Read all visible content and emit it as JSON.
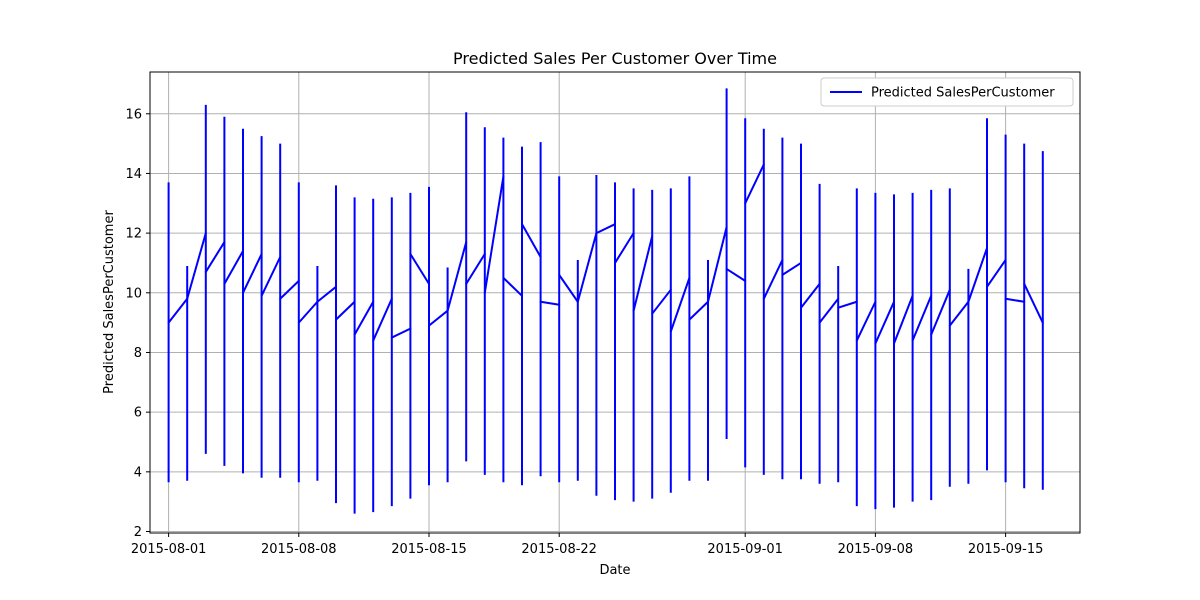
{
  "chart_data": {
    "type": "line",
    "title": "Predicted Sales Per Customer Over Time",
    "xlabel": "Date",
    "ylabel": "Predicted SalesPerCustomer",
    "x_ticks": [
      "2015-08-01",
      "2015-08-08",
      "2015-08-15",
      "2015-08-22",
      "2015-09-01",
      "2015-09-08",
      "2015-09-15"
    ],
    "y_ticks": [
      "2",
      "4",
      "6",
      "8",
      "10",
      "12",
      "14",
      "16"
    ],
    "xlim": [
      "2015-07-31",
      "2015-09-19"
    ],
    "ylim": [
      1.95,
      17.4
    ],
    "grid": true,
    "legend_position": "top-right",
    "series": [
      {
        "name": "Predicted SalesPerCustomer",
        "color": "#0000ff",
        "x": [
          "2015-08-01",
          "2015-08-02",
          "2015-08-03",
          "2015-08-04",
          "2015-08-05",
          "2015-08-06",
          "2015-08-07",
          "2015-08-08",
          "2015-08-09",
          "2015-08-10",
          "2015-08-11",
          "2015-08-12",
          "2015-08-13",
          "2015-08-14",
          "2015-08-15",
          "2015-08-16",
          "2015-08-17",
          "2015-08-18",
          "2015-08-19",
          "2015-08-20",
          "2015-08-21",
          "2015-08-22",
          "2015-08-23",
          "2015-08-24",
          "2015-08-25",
          "2015-08-26",
          "2015-08-27",
          "2015-08-28",
          "2015-08-29",
          "2015-08-30",
          "2015-08-31",
          "2015-09-01",
          "2015-09-02",
          "2015-09-03",
          "2015-09-04",
          "2015-09-05",
          "2015-09-06",
          "2015-09-07",
          "2015-09-08",
          "2015-09-09",
          "2015-09-10",
          "2015-09-11",
          "2015-09-12",
          "2015-09-13",
          "2015-09-14",
          "2015-09-15",
          "2015-09-16",
          "2015-09-17"
        ],
        "ranges": [
          [
            3.65,
            13.7
          ],
          [
            3.7,
            10.9
          ],
          [
            4.6,
            16.3
          ],
          [
            4.2,
            15.9
          ],
          [
            3.95,
            15.5
          ],
          [
            3.8,
            15.25
          ],
          [
            3.8,
            15.0
          ],
          [
            3.65,
            13.7
          ],
          [
            3.7,
            10.9
          ],
          [
            2.95,
            13.6
          ],
          [
            2.6,
            13.2
          ],
          [
            2.65,
            13.15
          ],
          [
            2.85,
            13.2
          ],
          [
            3.1,
            13.35
          ],
          [
            3.55,
            13.55
          ],
          [
            3.65,
            10.85
          ],
          [
            4.35,
            16.05
          ],
          [
            3.9,
            15.55
          ],
          [
            3.65,
            15.2
          ],
          [
            3.55,
            14.9
          ],
          [
            3.85,
            15.05
          ],
          [
            3.65,
            13.9
          ],
          [
            3.7,
            11.1
          ],
          [
            3.2,
            13.95
          ],
          [
            3.05,
            13.7
          ],
          [
            3.0,
            13.5
          ],
          [
            3.1,
            13.45
          ],
          [
            3.3,
            13.5
          ],
          [
            3.7,
            13.9
          ],
          [
            3.7,
            11.1
          ],
          [
            5.1,
            16.85
          ],
          [
            4.15,
            15.85
          ],
          [
            3.9,
            15.5
          ],
          [
            3.75,
            15.2
          ],
          [
            3.75,
            15.0
          ],
          [
            3.6,
            13.65
          ],
          [
            3.65,
            10.9
          ],
          [
            2.85,
            13.5
          ],
          [
            2.75,
            13.35
          ],
          [
            2.8,
            13.3
          ],
          [
            3.0,
            13.35
          ],
          [
            3.05,
            13.45
          ],
          [
            3.5,
            13.5
          ],
          [
            3.6,
            10.8
          ],
          [
            4.05,
            15.85
          ],
          [
            3.65,
            15.3
          ],
          [
            3.45,
            15.0
          ],
          [
            3.4,
            14.75
          ]
        ],
        "connections": [
          [
            9.0,
            9.8
          ],
          [
            9.8,
            12.0
          ],
          [
            10.7,
            11.7
          ],
          [
            10.3,
            11.4
          ],
          [
            10.0,
            11.3
          ],
          [
            9.9,
            11.2
          ],
          [
            9.8,
            10.4
          ],
          [
            9.0,
            9.7
          ],
          [
            9.7,
            10.2
          ],
          [
            9.1,
            9.7
          ],
          [
            8.6,
            9.7
          ],
          [
            8.4,
            9.8
          ],
          [
            8.5,
            8.8
          ],
          [
            11.3,
            10.3
          ],
          [
            8.9,
            9.4
          ],
          [
            9.4,
            11.7
          ],
          [
            10.3,
            11.3
          ],
          [
            10.0,
            13.9
          ],
          [
            10.5,
            9.9
          ],
          [
            12.3,
            11.2
          ],
          [
            9.7,
            9.6
          ],
          [
            10.6,
            9.7
          ],
          [
            9.7,
            12.0
          ],
          [
            12.0,
            12.3
          ],
          [
            11.0,
            12.0
          ],
          [
            9.4,
            11.9
          ],
          [
            9.3,
            10.1
          ],
          [
            8.7,
            10.5
          ],
          [
            9.1,
            9.7
          ],
          [
            9.7,
            12.2
          ],
          [
            10.8,
            10.4
          ],
          [
            13.0,
            14.3
          ],
          [
            9.8,
            11.1
          ],
          [
            10.6,
            11.0
          ],
          [
            9.5,
            10.3
          ],
          [
            9.0,
            9.8
          ],
          [
            9.5,
            9.7
          ],
          [
            8.4,
            9.7
          ],
          [
            8.3,
            9.7
          ],
          [
            8.3,
            9.9
          ],
          [
            8.4,
            9.9
          ],
          [
            8.6,
            10.1
          ],
          [
            8.9,
            9.7
          ],
          [
            9.7,
            11.5
          ],
          [
            10.2,
            11.1
          ],
          [
            9.8,
            9.7
          ],
          [
            10.3,
            9.0
          ]
        ]
      }
    ]
  }
}
